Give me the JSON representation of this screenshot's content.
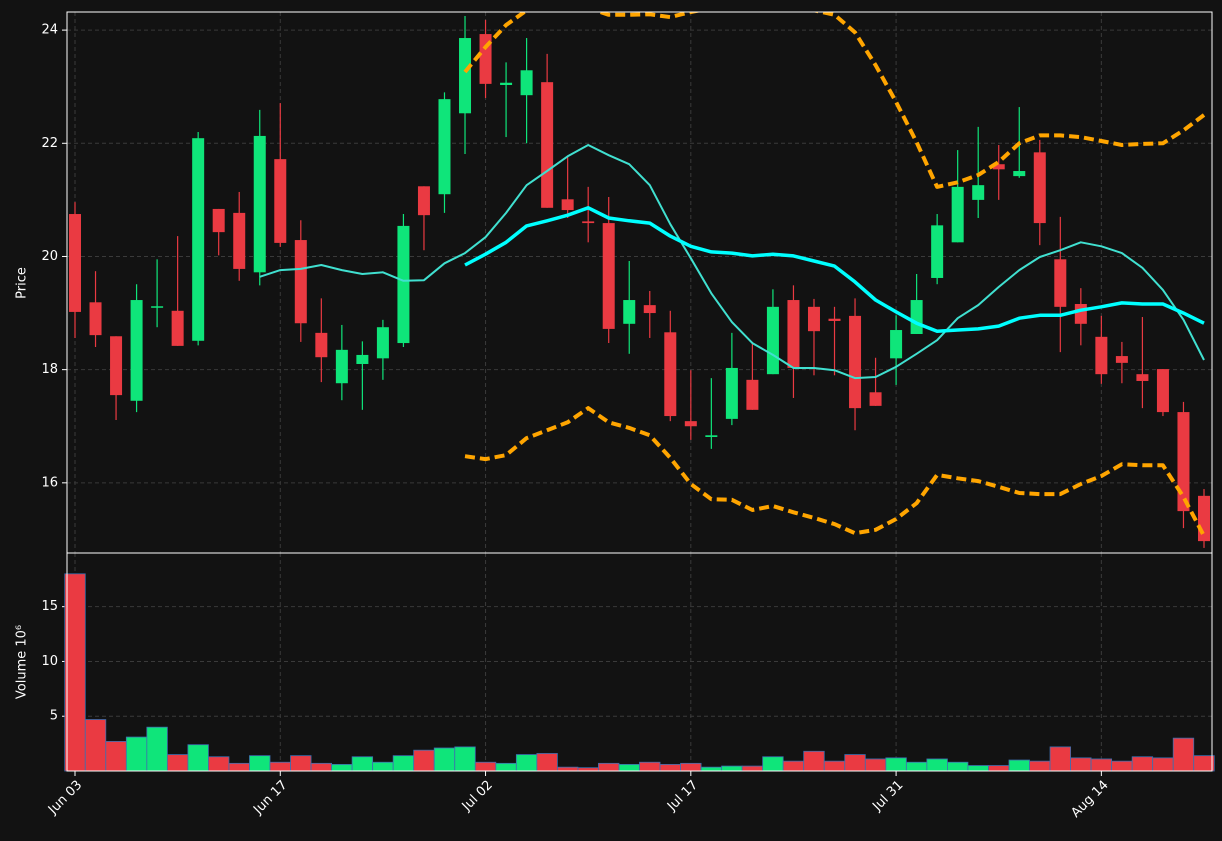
{
  "chart_data": [
    {
      "type": "candlestick",
      "ylabel": "Price",
      "grid": true,
      "up_color": "#0fe57a",
      "down_color": "#ea3a42",
      "categories": [
        "Jun 03",
        null,
        null,
        null,
        null,
        null,
        null,
        null,
        null,
        null,
        "Jun 17",
        null,
        null,
        null,
        null,
        null,
        null,
        null,
        null,
        null,
        "Jul 02",
        null,
        null,
        null,
        null,
        null,
        null,
        null,
        null,
        null,
        "Jul 17",
        null,
        null,
        null,
        null,
        null,
        null,
        null,
        null,
        null,
        "Jul 31",
        null,
        null,
        null,
        null,
        null,
        null,
        null,
        null,
        null,
        "Aug 14",
        null,
        null,
        null,
        null,
        null
      ],
      "open": [
        20.75,
        19.19,
        18.59,
        17.45,
        19.1,
        19.04,
        18.51,
        20.84,
        20.77,
        19.72,
        21.72,
        20.29,
        18.65,
        17.76,
        18.1,
        18.2,
        18.47,
        21.24,
        21.1,
        22.53,
        23.93,
        23.03,
        22.85,
        23.08,
        21.01,
        20.62,
        20.59,
        18.81,
        19.14,
        18.66,
        17.09,
        16.81,
        17.13,
        17.82,
        17.92,
        19.23,
        19.11,
        18.9,
        18.95,
        17.6,
        18.2,
        18.63,
        19.62,
        20.25,
        21.0,
        21.63,
        21.42,
        21.84,
        19.95,
        19.16,
        18.58,
        18.24,
        17.92,
        18.01,
        17.25,
        15.77
      ],
      "high": [
        20.96,
        19.74,
        18.59,
        19.51,
        19.95,
        20.36,
        22.2,
        20.84,
        21.14,
        22.59,
        22.71,
        20.64,
        19.26,
        18.79,
        18.5,
        18.88,
        20.75,
        21.24,
        22.9,
        24.25,
        24.18,
        23.43,
        23.86,
        23.58,
        21.77,
        21.23,
        21.05,
        19.92,
        19.39,
        19.04,
        17.99,
        17.85,
        18.65,
        18.49,
        19.42,
        19.49,
        19.25,
        19.11,
        19.26,
        18.21,
        18.96,
        19.69,
        20.75,
        21.88,
        22.29,
        21.97,
        22.64,
        22.06,
        20.7,
        19.44,
        18.95,
        18.49,
        18.93,
        18.01,
        17.43,
        15.89
      ],
      "low": [
        18.56,
        18.4,
        17.11,
        17.25,
        18.75,
        18.42,
        18.43,
        20.02,
        19.57,
        19.49,
        20.17,
        18.49,
        17.78,
        17.46,
        17.29,
        17.82,
        18.4,
        20.11,
        20.77,
        21.81,
        22.8,
        22.11,
        22.0,
        20.86,
        20.68,
        20.25,
        18.47,
        18.28,
        18.56,
        17.09,
        16.76,
        16.6,
        17.02,
        17.29,
        17.92,
        17.5,
        17.9,
        17.9,
        16.93,
        17.36,
        17.73,
        18.63,
        19.51,
        20.25,
        20.68,
        21.0,
        21.39,
        20.2,
        18.31,
        18.43,
        17.75,
        17.76,
        17.32,
        17.18,
        15.2,
        14.85
      ],
      "close": [
        19.02,
        18.61,
        17.55,
        19.23,
        19.12,
        18.42,
        22.09,
        20.43,
        19.78,
        22.13,
        20.24,
        18.82,
        18.22,
        18.35,
        18.26,
        18.75,
        20.54,
        20.73,
        22.78,
        23.86,
        23.05,
        23.07,
        23.29,
        20.86,
        20.82,
        20.59,
        18.72,
        19.23,
        19.0,
        17.18,
        17.0,
        16.84,
        18.03,
        17.29,
        19.11,
        18.03,
        18.68,
        18.86,
        17.32,
        17.36,
        18.7,
        19.23,
        20.55,
        21.23,
        21.26,
        21.54,
        21.51,
        20.59,
        19.11,
        18.81,
        17.92,
        18.12,
        17.8,
        17.25,
        15.5,
        14.97
      ],
      "lines": [
        {
          "color": "#40e0d0",
          "style": "solid",
          "width": 2,
          "values": [
            null,
            null,
            null,
            null,
            null,
            null,
            null,
            null,
            null,
            19.64,
            19.76,
            19.78,
            19.85,
            19.76,
            19.69,
            19.72,
            19.57,
            19.58,
            19.88,
            20.06,
            20.34,
            20.77,
            21.26,
            21.51,
            21.77,
            21.97,
            21.79,
            21.63,
            21.26,
            20.57,
            19.97,
            19.35,
            18.84,
            18.47,
            18.26,
            18.03,
            18.03,
            17.99,
            17.85,
            17.87,
            18.05,
            18.28,
            18.52,
            18.91,
            19.14,
            19.46,
            19.76,
            19.99,
            20.11,
            20.25,
            20.18,
            20.06,
            19.8,
            19.41,
            18.88,
            18.17
          ]
        },
        {
          "color": "#00ffff",
          "style": "solid",
          "width": 3.5,
          "values": [
            null,
            null,
            null,
            null,
            null,
            null,
            null,
            null,
            null,
            null,
            null,
            null,
            null,
            null,
            null,
            null,
            null,
            null,
            null,
            19.85,
            20.04,
            20.25,
            20.54,
            20.63,
            20.73,
            20.86,
            20.68,
            20.63,
            20.59,
            20.36,
            20.18,
            20.08,
            20.06,
            20.01,
            20.04,
            20.01,
            19.92,
            19.83,
            19.55,
            19.23,
            19.02,
            18.82,
            18.68,
            18.7,
            18.72,
            18.77,
            18.91,
            18.96,
            18.96,
            19.05,
            19.11,
            19.18,
            19.16,
            19.16,
            19.0,
            18.82
          ]
        },
        {
          "color": "#ffa500",
          "style": "dashed",
          "width": 4,
          "values": [
            null,
            null,
            null,
            null,
            null,
            null,
            null,
            null,
            null,
            null,
            null,
            null,
            null,
            null,
            null,
            null,
            null,
            null,
            null,
            23.26,
            23.7,
            24.09,
            24.35,
            24.5,
            24.5,
            24.39,
            24.27,
            24.27,
            24.28,
            24.23,
            24.32,
            24.39,
            24.44,
            24.46,
            24.44,
            24.41,
            24.35,
            24.27,
            23.96,
            23.38,
            22.73,
            22.02,
            21.23,
            21.31,
            21.44,
            21.67,
            22.0,
            22.14,
            22.14,
            22.11,
            22.04,
            21.97,
            21.99,
            22.0,
            22.23,
            22.5
          ]
        },
        {
          "color": "#ffa500",
          "style": "dashed",
          "width": 4,
          "values": [
            null,
            null,
            null,
            null,
            null,
            null,
            null,
            null,
            null,
            null,
            null,
            null,
            null,
            null,
            null,
            null,
            null,
            null,
            null,
            16.47,
            16.42,
            16.49,
            16.79,
            16.93,
            17.07,
            17.32,
            17.07,
            16.97,
            16.84,
            16.44,
            15.98,
            15.71,
            15.7,
            15.52,
            15.59,
            15.48,
            15.38,
            15.27,
            15.11,
            15.17,
            15.36,
            15.64,
            16.14,
            16.08,
            16.03,
            15.93,
            15.82,
            15.8,
            15.8,
            15.98,
            16.12,
            16.33,
            16.31,
            16.31,
            15.75,
            15.06
          ]
        }
      ],
      "ylim": [
        14.76,
        24.32
      ],
      "yticks": [
        16,
        18,
        20,
        22,
        24
      ]
    },
    {
      "type": "bar",
      "ylabel": "Volume  10⁶",
      "grid": true,
      "edge_color": "#3d6fb0",
      "values": [
        18.0,
        4.7,
        2.7,
        3.1,
        4.0,
        1.5,
        2.4,
        1.3,
        0.7,
        1.4,
        0.8,
        1.4,
        0.7,
        0.6,
        1.3,
        0.8,
        1.4,
        1.9,
        2.1,
        2.2,
        0.8,
        0.7,
        1.5,
        1.6,
        0.35,
        0.3,
        0.7,
        0.6,
        0.8,
        0.6,
        0.7,
        0.35,
        0.45,
        0.45,
        1.3,
        0.9,
        1.8,
        0.9,
        1.5,
        1.1,
        1.2,
        0.8,
        1.1,
        0.8,
        0.5,
        0.5,
        1.0,
        0.9,
        2.2,
        1.2,
        1.1,
        0.9,
        1.3,
        1.2,
        3.0,
        1.4
      ],
      "ylim": [
        0,
        19.9
      ],
      "yticks": [
        5,
        10,
        15
      ]
    }
  ]
}
